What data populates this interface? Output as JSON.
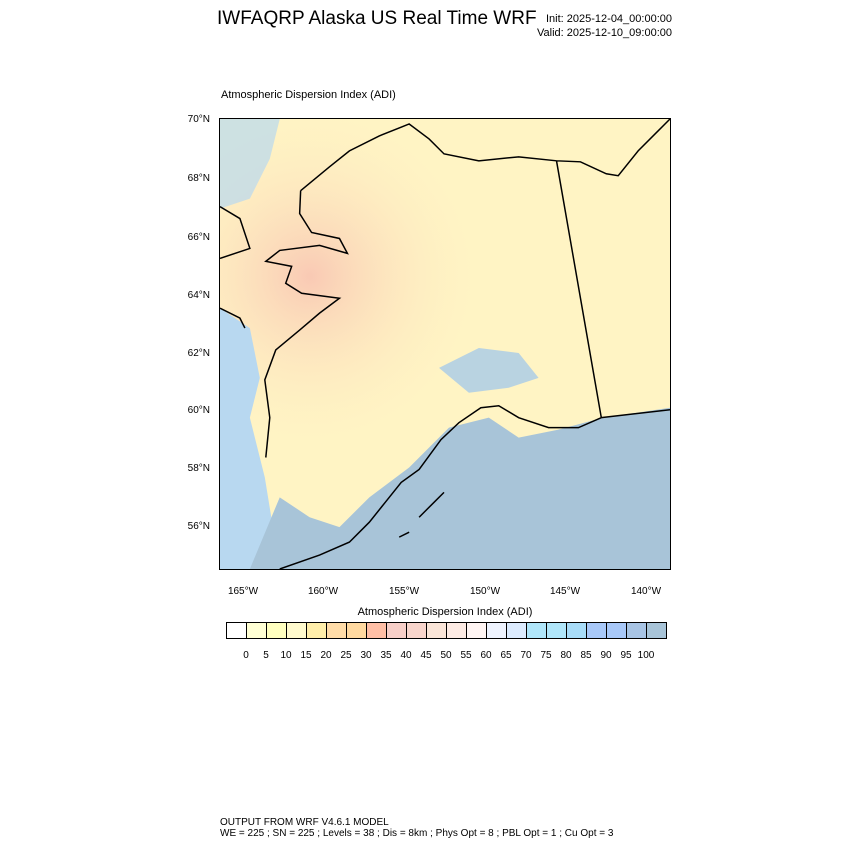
{
  "header": {
    "title": "IWFAQRP Alaska US Real Time WRF",
    "init": "Init: 2025-12-04_00:00:00",
    "valid": "Valid: 2025-12-10_09:00:00"
  },
  "map": {
    "subtitle": "Atmospheric Dispersion Index   (ADI)",
    "lat_labels": [
      "70°N",
      "68°N",
      "66°N",
      "64°N",
      "62°N",
      "60°N",
      "58°N",
      "56°N"
    ],
    "lon_labels": [
      "165°W",
      "160°W",
      "155°W",
      "150°W",
      "145°W",
      "140°W"
    ],
    "colors": {
      "land": "#fff4c4",
      "sea": "#a8c4d8",
      "coast": "#000000"
    }
  },
  "colorbar": {
    "title": "Atmospheric Dispersion Index  (ADI)",
    "labels": [
      "0",
      "5",
      "10",
      "15",
      "20",
      "25",
      "30",
      "35",
      "40",
      "45",
      "50",
      "55",
      "60",
      "65",
      "70",
      "75",
      "80",
      "85",
      "90",
      "95",
      "100"
    ],
    "colors": [
      "#ffffff",
      "#ffffd4",
      "#ffffbf",
      "#fffacd",
      "#ffeeaa",
      "#ffdca8",
      "#ffd9a0",
      "#ffbfa6",
      "#f7cfc8",
      "#f8d5cc",
      "#fae5d8",
      "#fdebe4",
      "#fff5f3",
      "#eef3fe",
      "#dcebfe",
      "#b0e6fa",
      "#b0e6fa",
      "#a8dcf8",
      "#a8c8f8",
      "#a8c8f8",
      "#a8c4e4",
      "#a8c4d8"
    ]
  },
  "footer": {
    "line1": "OUTPUT FROM WRF V4.6.1 MODEL",
    "line2": "WE = 225 ; SN = 225 ; Levels = 38 ; Dis = 8km ; Phys Opt = 8 ; PBL Opt = 1 ; Cu Opt = 3"
  }
}
